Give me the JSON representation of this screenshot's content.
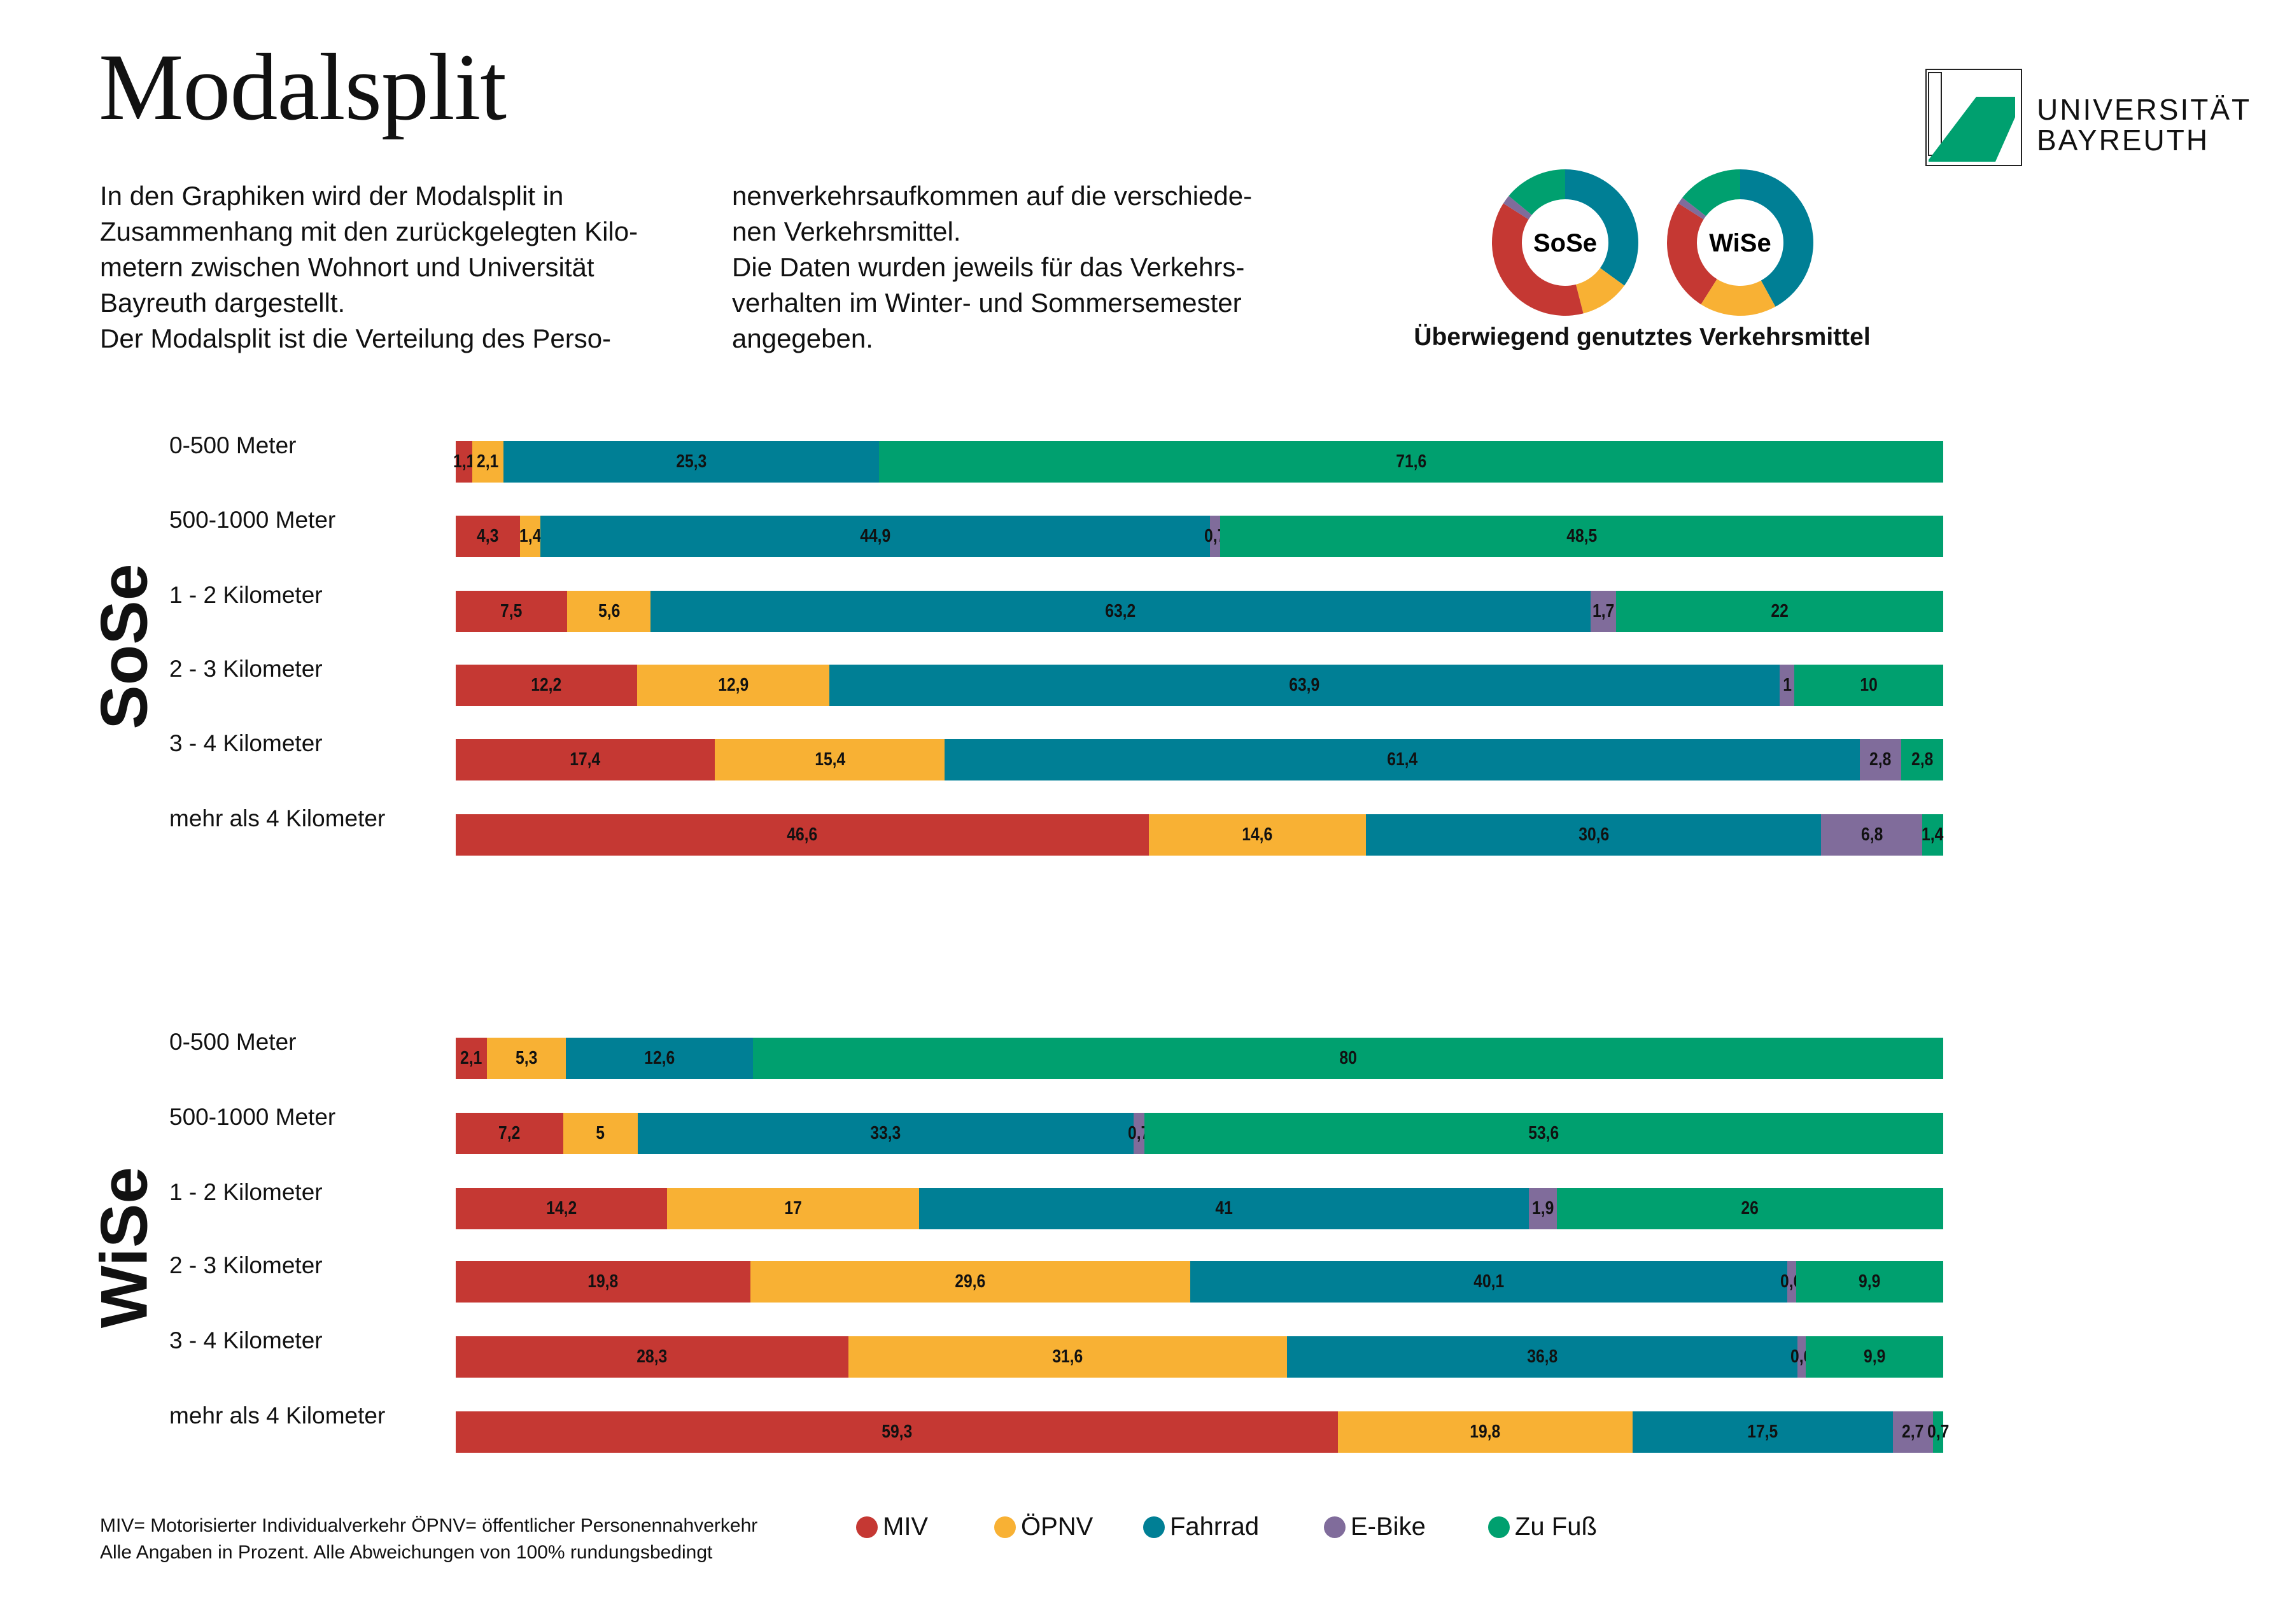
{
  "title": "Modalsplit",
  "intro_col1": [
    "In den Graphiken wird der Modalsplit in",
    "Zusammenhang mit den zurückgelegten Kilo-",
    "metern zwischen Wohnort und  Universität",
    "Bayreuth dargestellt.",
    "Der Modalsplit ist die Verteilung des Perso-"
  ],
  "intro_col2": [
    "nenverkehrsaufkommen auf die verschiede-",
    "nen Verkehrsmittel.",
    "Die Daten wurden jeweils für das Verkehrs-",
    "verhalten im Winter- und Sommersemester",
    "angegeben."
  ],
  "logo": {
    "line1": "UNIVERSITÄT",
    "line2": "BAYREUTH"
  },
  "donut_caption": "Überwiegend genutztes Verkehrsmittel",
  "footnote": [
    "MIV= Motorisierter Individualverkehr ÖPNV= öffentlicher Personennahverkehr",
    "Alle Angaben in Prozent. Alle Abweichungen von 100% rundungsbedingt"
  ],
  "chart_data": {
    "type": "bar",
    "orientation": "horizontal-stacked",
    "title": "Modalsplit",
    "xlabel": "",
    "ylabel": "",
    "xlim": [
      0,
      100
    ],
    "legend": {
      "placement": "bottom",
      "entries": [
        "MIV",
        "ÖPNV",
        "Fahrrad",
        "E-Bike",
        "Zu Fuß"
      ]
    },
    "colors": {
      "MIV": "#c53833",
      "ÖPNV": "#f8b134",
      "Fahrrad": "#007f95",
      "E-Bike": "#806c9b",
      "Zu Fuß": "#00a06f"
    },
    "categories": [
      "0-500 Meter",
      "500-1000 Meter",
      "1 - 2 Kilometer",
      "2 - 3 Kilometer",
      "3 - 4 Kilometer",
      "mehr als 4 Kilometer"
    ],
    "panels": [
      {
        "name": "SoSe",
        "rows": [
          {
            "labels": [
              "1,1",
              "2,1",
              "25,3",
              "",
              "71,6"
            ],
            "values": [
              1.1,
              2.1,
              25.3,
              0,
              71.6
            ]
          },
          {
            "labels": [
              "4,3",
              "1,4",
              "44,9",
              "0,7",
              "48,5"
            ],
            "values": [
              4.3,
              1.4,
              44.9,
              0.7,
              48.5
            ]
          },
          {
            "labels": [
              "7,5",
              "5,6",
              "63,2",
              "1,7",
              "22"
            ],
            "values": [
              7.5,
              5.6,
              63.2,
              1.7,
              22
            ]
          },
          {
            "labels": [
              "12,2",
              "12,9",
              "63,9",
              "1",
              "10"
            ],
            "values": [
              12.2,
              12.9,
              63.9,
              1,
              10
            ]
          },
          {
            "labels": [
              "17,4",
              "15,4",
              "61,4",
              "2,8",
              "2,8"
            ],
            "values": [
              17.4,
              15.4,
              61.4,
              2.8,
              2.8
            ]
          },
          {
            "labels": [
              "46,6",
              "14,6",
              "30,6",
              "6,8",
              "1,4"
            ],
            "values": [
              46.6,
              14.6,
              30.6,
              6.8,
              1.4
            ]
          }
        ]
      },
      {
        "name": "WiSe",
        "rows": [
          {
            "labels": [
              "2,1",
              "5,3",
              "12,6",
              "",
              "80"
            ],
            "values": [
              2.1,
              5.3,
              12.6,
              0,
              80
            ]
          },
          {
            "labels": [
              "7,2",
              "5",
              "33,3",
              "0,7",
              "53,6"
            ],
            "values": [
              7.2,
              5,
              33.3,
              0.7,
              53.6
            ]
          },
          {
            "labels": [
              "14,2",
              "17",
              "41",
              "1,9",
              "26"
            ],
            "values": [
              14.2,
              17,
              41,
              1.9,
              26
            ]
          },
          {
            "labels": [
              "19,8",
              "29,6",
              "40,1",
              "0,6",
              "9,9"
            ],
            "values": [
              19.8,
              29.6,
              40.1,
              0.6,
              9.9
            ]
          },
          {
            "labels": [
              "28,3",
              "31,6",
              "36,8",
              "0,6",
              "9,9"
            ],
            "values": [
              28.3,
              31.6,
              36.8,
              0.6,
              9.9
            ]
          },
          {
            "labels": [
              "59,3",
              "19,8",
              "17,5",
              "2,7",
              "0,7"
            ],
            "values": [
              59.3,
              19.8,
              17.5,
              2.7,
              0.7
            ]
          }
        ]
      }
    ],
    "donuts": [
      {
        "name": "SoSe",
        "values": [
          38,
          11,
          35,
          2,
          14
        ],
        "order": [
          "MIV",
          "ÖPNV",
          "Fahrrad",
          "E-Bike",
          "Zu Fuß"
        ]
      },
      {
        "name": "WiSe",
        "values": [
          25,
          17,
          42,
          1.5,
          14.5
        ],
        "order": [
          "MIV",
          "ÖPNV",
          "Fahrrad",
          "E-Bike",
          "Zu Fuß"
        ]
      }
    ]
  }
}
